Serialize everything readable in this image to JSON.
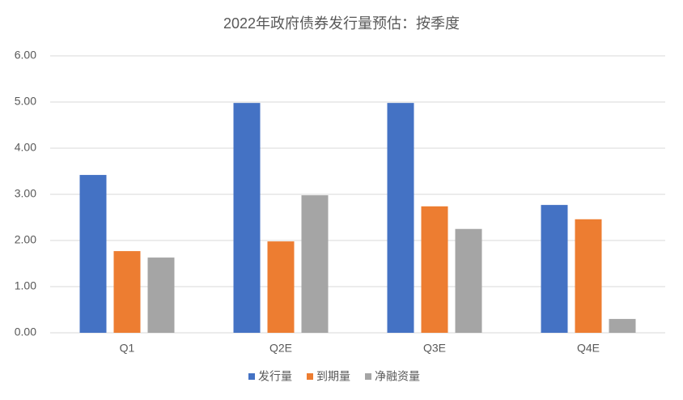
{
  "chart_data": {
    "type": "bar",
    "title": "2022年政府债券发行量预估：按季度",
    "categories": [
      "Q1",
      "Q2E",
      "Q3E",
      "Q4E"
    ],
    "series": [
      {
        "name": "发行量",
        "color": "#4472c4",
        "values": [
          3.42,
          4.98,
          4.98,
          2.77
        ]
      },
      {
        "name": "到期量",
        "color": "#ed7d31",
        "values": [
          1.77,
          1.98,
          2.74,
          2.46
        ]
      },
      {
        "name": "净融资量",
        "color": "#a5a5a5",
        "values": [
          1.63,
          2.98,
          2.25,
          0.3
        ]
      }
    ],
    "ylim": [
      0,
      6
    ],
    "yticks": [
      {
        "value": 0,
        "label": "0.00"
      },
      {
        "value": 1,
        "label": "1.00"
      },
      {
        "value": 2,
        "label": "2.00"
      },
      {
        "value": 3,
        "label": "3.00"
      },
      {
        "value": 4,
        "label": "4.00"
      },
      {
        "value": 5,
        "label": "5.00"
      },
      {
        "value": 6,
        "label": "6.00"
      }
    ],
    "grid": true,
    "legend": "bottom"
  }
}
